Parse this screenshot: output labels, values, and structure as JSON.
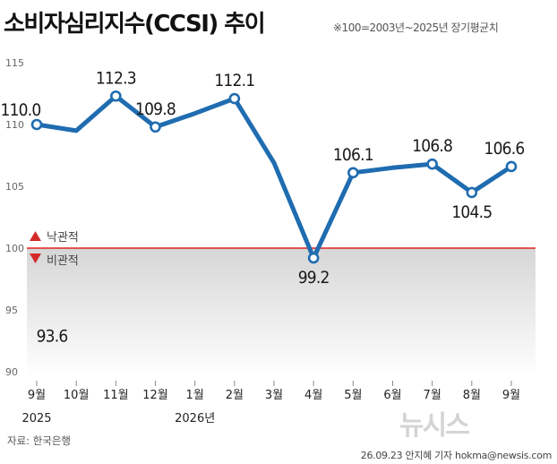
{
  "header": {
    "title": "소비자심리지수(CCSI) 추이",
    "subtitle": "※100=2003년~2025년 장기평균치"
  },
  "source": "자료: 한국은행",
  "credit": "26.09.23 안지혜 기자 hokma@newsis.com",
  "watermark": "뉴시스",
  "legend": {
    "up_label": "낙관적",
    "down_label": "비관적",
    "up_color": "#d42a2a",
    "down_color": "#d42a2a"
  },
  "chart_data": {
    "type": "line",
    "title": "소비자심리지수(CCSI) 추이",
    "categories": [
      "9월",
      "10월",
      "11월",
      "12월",
      "1월",
      "2월",
      "3월",
      "4월",
      "5월",
      "6월",
      "7월",
      "8월",
      "9월"
    ],
    "year_labels": [
      {
        "category_index": 0,
        "label": "2025"
      },
      {
        "category_index": 4,
        "label": "2026년"
      }
    ],
    "series": [
      {
        "values": [
          110.0,
          109.5,
          112.3,
          109.8,
          110.9,
          112.1,
          106.9,
          99.2,
          106.1,
          106.5,
          106.8,
          104.5,
          106.6
        ]
      }
    ],
    "data_labels": [
      {
        "index": 0,
        "text": "110.0"
      },
      {
        "index": 2,
        "text": "112.3"
      },
      {
        "index": 3,
        "text": "109.8"
      },
      {
        "index": 5,
        "text": "112.1"
      },
      {
        "index": 7,
        "text": "99.2"
      },
      {
        "index": 8,
        "text": "106.1"
      },
      {
        "index": 10,
        "text": "106.8"
      },
      {
        "index": 11,
        "text": "104.5"
      },
      {
        "index": 12,
        "text": "106.6"
      }
    ],
    "extra_annotation": "93.6",
    "yticks": [
      90,
      95,
      100,
      105,
      110,
      115
    ],
    "ylim": [
      90,
      115
    ],
    "baseline": 100,
    "colors": {
      "line": "#1f6cb0",
      "baseline": "#e02020",
      "below_fill": "#dcdcdc"
    }
  }
}
